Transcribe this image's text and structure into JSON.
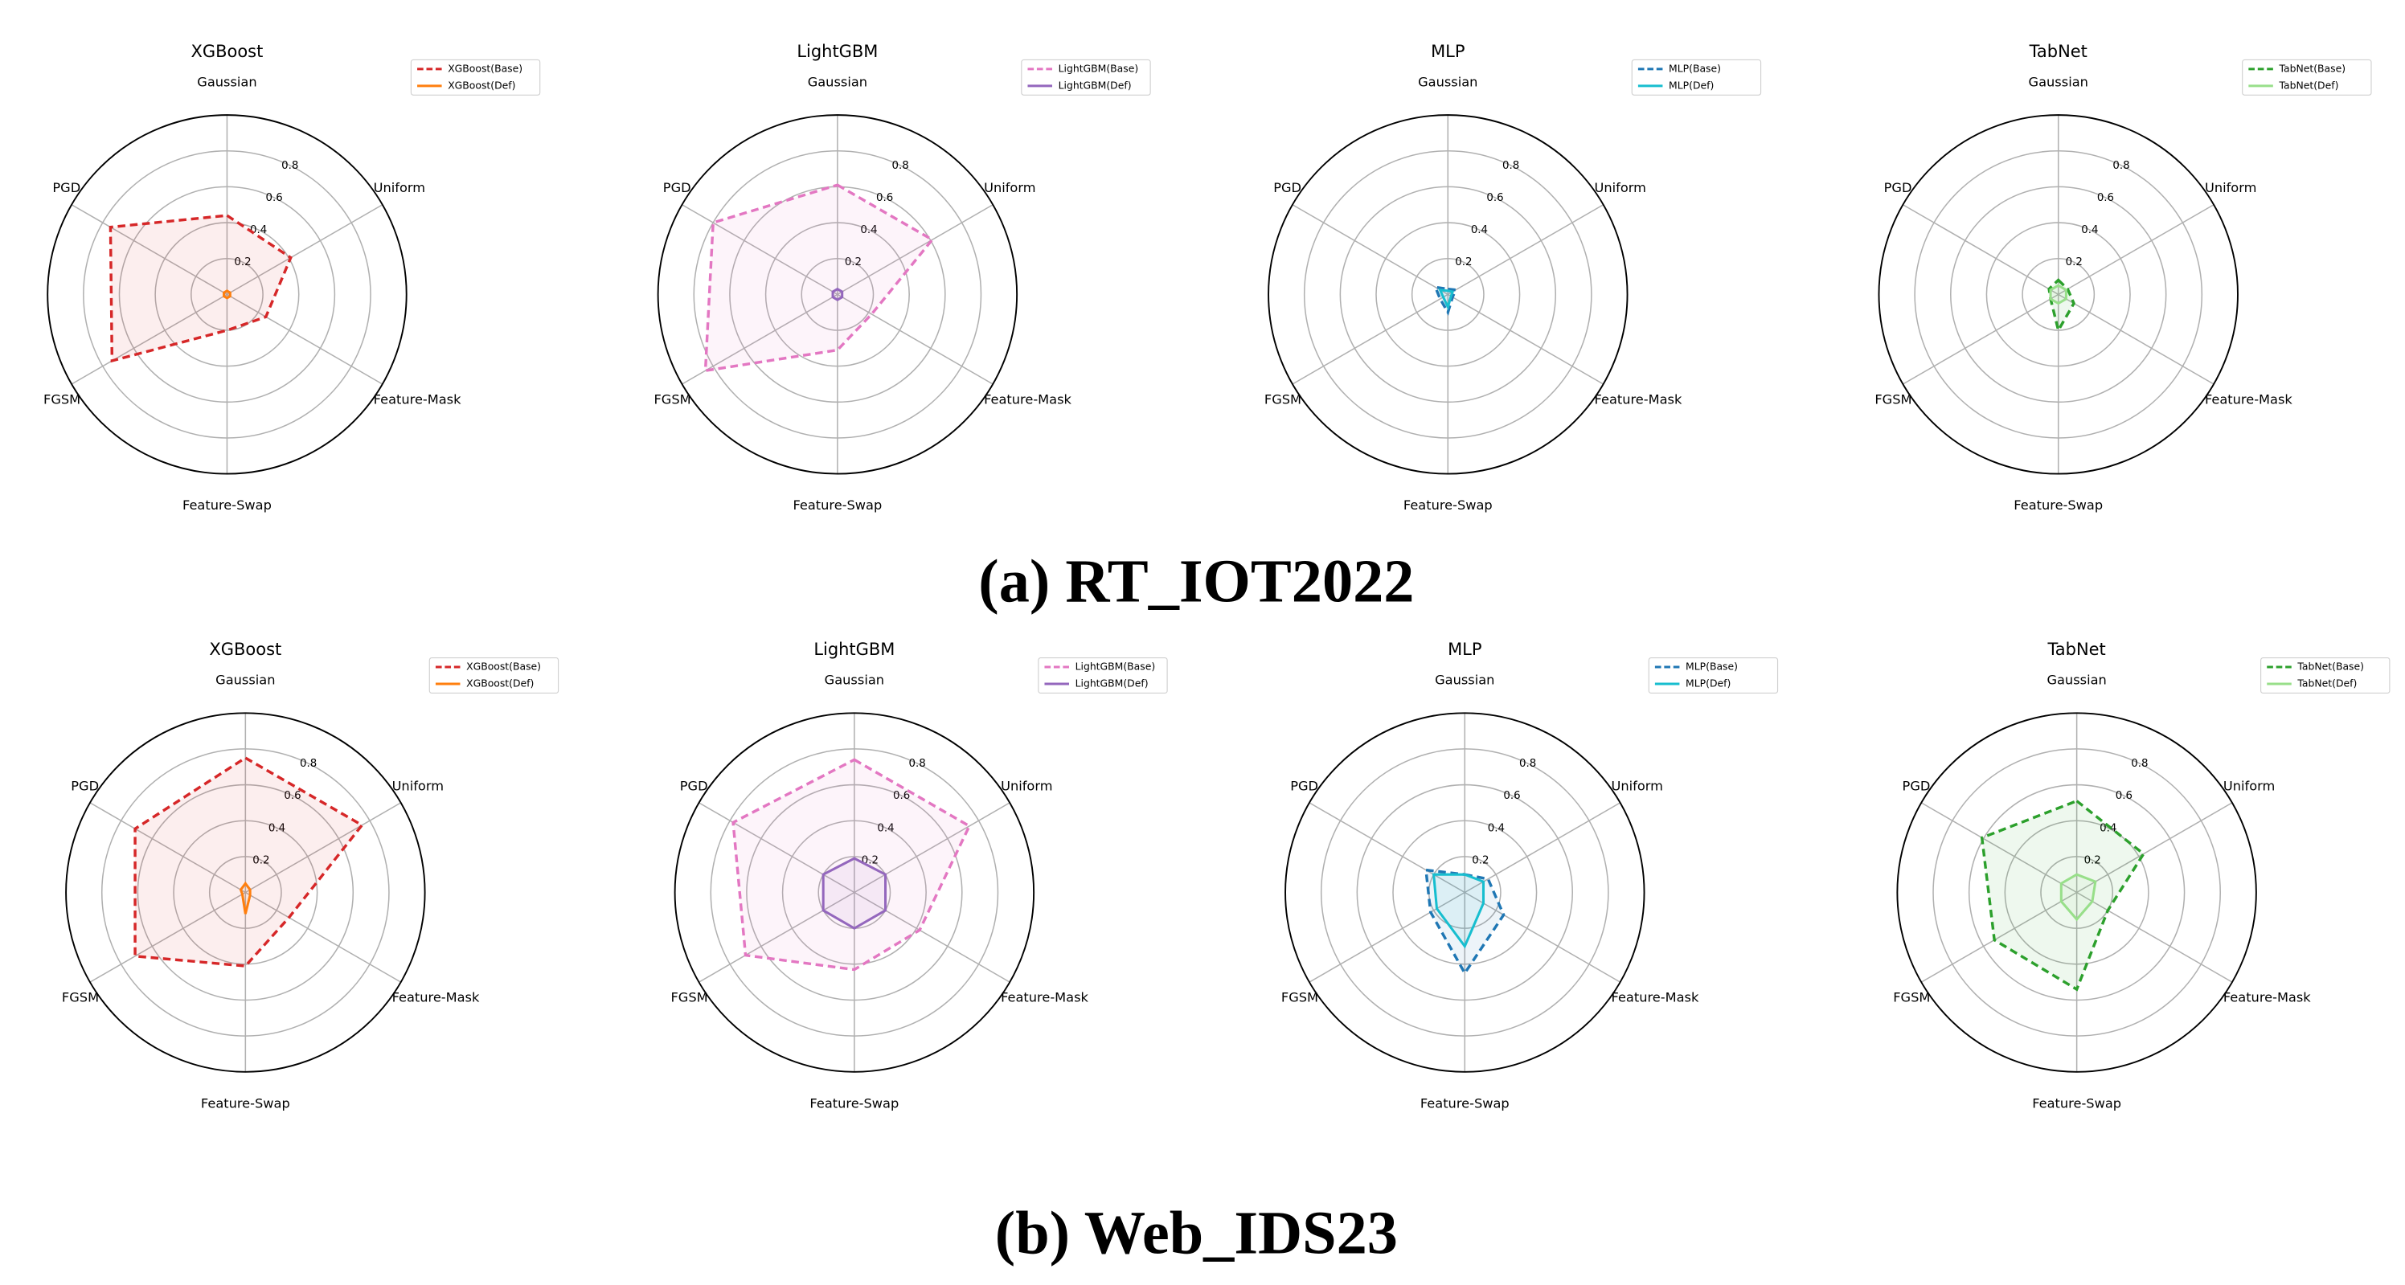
{
  "captions": [
    "(a) RT_IOT2022",
    "(b) Web_IDS23"
  ],
  "chart_data": [
    {
      "type": "radar",
      "title": "XGBoost",
      "categories": [
        "Gaussian",
        "Uniform",
        "Feature-Mask",
        "Feature-Swap",
        "FGSM",
        "PGD"
      ],
      "rlim": [
        0,
        1
      ],
      "rticks": [
        0.2,
        0.4,
        0.6,
        0.8
      ],
      "grid": true,
      "legend": "upper right",
      "series": [
        {
          "name": "XGBoost(Base)",
          "color": "#d62728",
          "linestyle": "dashed",
          "values": [
            0.44,
            0.41,
            0.25,
            0.2,
            0.74,
            0.75
          ]
        },
        {
          "name": "XGBoost(Def)",
          "color": "#ff7f0e",
          "linestyle": "solid",
          "values": [
            0.02,
            0.02,
            0.02,
            0.02,
            0.02,
            0.02
          ]
        }
      ]
    },
    {
      "type": "radar",
      "title": "LightGBM",
      "categories": [
        "Gaussian",
        "Uniform",
        "Feature-Mask",
        "Feature-Swap",
        "FGSM",
        "PGD"
      ],
      "rlim": [
        0,
        1
      ],
      "rticks": [
        0.2,
        0.4,
        0.6,
        0.8
      ],
      "grid": true,
      "legend": "upper right",
      "series": [
        {
          "name": "LightGBM(Base)",
          "color": "#e377c2",
          "linestyle": "dashed",
          "values": [
            0.61,
            0.61,
            0.22,
            0.31,
            0.85,
            0.8
          ]
        },
        {
          "name": "LightGBM(Def)",
          "color": "#9467bd",
          "linestyle": "solid",
          "values": [
            0.03,
            0.03,
            0.03,
            0.03,
            0.03,
            0.03
          ]
        }
      ]
    },
    {
      "type": "radar",
      "title": "MLP",
      "categories": [
        "Gaussian",
        "Uniform",
        "Feature-Mask",
        "Feature-Swap",
        "FGSM",
        "PGD"
      ],
      "rlim": [
        0,
        1
      ],
      "rticks": [
        0.2,
        0.4,
        0.6,
        0.8
      ],
      "grid": true,
      "legend": "upper right",
      "series": [
        {
          "name": "MLP(Base)",
          "color": "#1f77b4",
          "linestyle": "dashed",
          "values": [
            0.03,
            0.05,
            0.03,
            0.1,
            0.05,
            0.08
          ]
        },
        {
          "name": "MLP(Def)",
          "color": "#17becf",
          "linestyle": "solid",
          "values": [
            0.02,
            0.03,
            0.02,
            0.07,
            0.03,
            0.05
          ]
        }
      ]
    },
    {
      "type": "radar",
      "title": "TabNet",
      "categories": [
        "Gaussian",
        "Uniform",
        "Feature-Mask",
        "Feature-Swap",
        "FGSM",
        "PGD"
      ],
      "rlim": [
        0,
        1
      ],
      "rticks": [
        0.2,
        0.4,
        0.6,
        0.8
      ],
      "grid": true,
      "legend": "upper right",
      "series": [
        {
          "name": "TabNet(Base)",
          "color": "#2ca02c",
          "linestyle": "dashed",
          "values": [
            0.08,
            0.06,
            0.1,
            0.2,
            0.05,
            0.06
          ]
        },
        {
          "name": "TabNet(Def)",
          "color": "#98df8a",
          "linestyle": "solid",
          "values": [
            0.05,
            0.05,
            0.05,
            0.05,
            0.05,
            0.05
          ]
        }
      ]
    },
    {
      "type": "radar",
      "title": "XGBoost",
      "categories": [
        "Gaussian",
        "Uniform",
        "Feature-Mask",
        "Feature-Swap",
        "FGSM",
        "PGD"
      ],
      "rlim": [
        0,
        1
      ],
      "rticks": [
        0.2,
        0.4,
        0.6,
        0.8
      ],
      "grid": true,
      "legend": "upper right",
      "series": [
        {
          "name": "XGBoost(Base)",
          "color": "#d62728",
          "linestyle": "dashed",
          "values": [
            0.75,
            0.75,
            0.28,
            0.41,
            0.71,
            0.71
          ]
        },
        {
          "name": "XGBoost(Def)",
          "color": "#ff7f0e",
          "linestyle": "solid",
          "values": [
            0.05,
            0.03,
            0.03,
            0.12,
            0.02,
            0.03
          ]
        }
      ]
    },
    {
      "type": "radar",
      "title": "LightGBM",
      "categories": [
        "Gaussian",
        "Uniform",
        "Feature-Mask",
        "Feature-Swap",
        "FGSM",
        "PGD"
      ],
      "rlim": [
        0,
        1
      ],
      "rticks": [
        0.2,
        0.4,
        0.6,
        0.8
      ],
      "grid": true,
      "legend": "upper right",
      "series": [
        {
          "name": "LightGBM(Base)",
          "color": "#e377c2",
          "linestyle": "dashed",
          "values": [
            0.74,
            0.74,
            0.42,
            0.43,
            0.7,
            0.78
          ]
        },
        {
          "name": "LightGBM(Def)",
          "color": "#9467bd",
          "linestyle": "solid",
          "values": [
            0.19,
            0.2,
            0.2,
            0.2,
            0.2,
            0.2
          ]
        }
      ]
    },
    {
      "type": "radar",
      "title": "MLP",
      "categories": [
        "Gaussian",
        "Uniform",
        "Feature-Mask",
        "Feature-Swap",
        "FGSM",
        "PGD"
      ],
      "rlim": [
        0,
        1
      ],
      "rticks": [
        0.2,
        0.4,
        0.6,
        0.8
      ],
      "grid": true,
      "legend": "upper right",
      "series": [
        {
          "name": "MLP(Base)",
          "color": "#1f77b4",
          "linestyle": "dashed",
          "values": [
            0.1,
            0.15,
            0.25,
            0.45,
            0.22,
            0.25
          ]
        },
        {
          "name": "MLP(Def)",
          "color": "#17becf",
          "linestyle": "solid",
          "values": [
            0.1,
            0.12,
            0.12,
            0.3,
            0.18,
            0.2
          ]
        }
      ]
    },
    {
      "type": "radar",
      "title": "TabNet",
      "categories": [
        "Gaussian",
        "Uniform",
        "Feature-Mask",
        "Feature-Swap",
        "FGSM",
        "PGD"
      ],
      "rlim": [
        0,
        1
      ],
      "rticks": [
        0.2,
        0.4,
        0.6,
        0.8
      ],
      "grid": true,
      "legend": "upper right",
      "series": [
        {
          "name": "TabNet(Base)",
          "color": "#2ca02c",
          "linestyle": "dashed",
          "values": [
            0.51,
            0.43,
            0.2,
            0.54,
            0.53,
            0.61
          ]
        },
        {
          "name": "TabNet(Def)",
          "color": "#98df8a",
          "linestyle": "solid",
          "values": [
            0.1,
            0.12,
            0.1,
            0.15,
            0.1,
            0.1
          ]
        }
      ]
    }
  ]
}
